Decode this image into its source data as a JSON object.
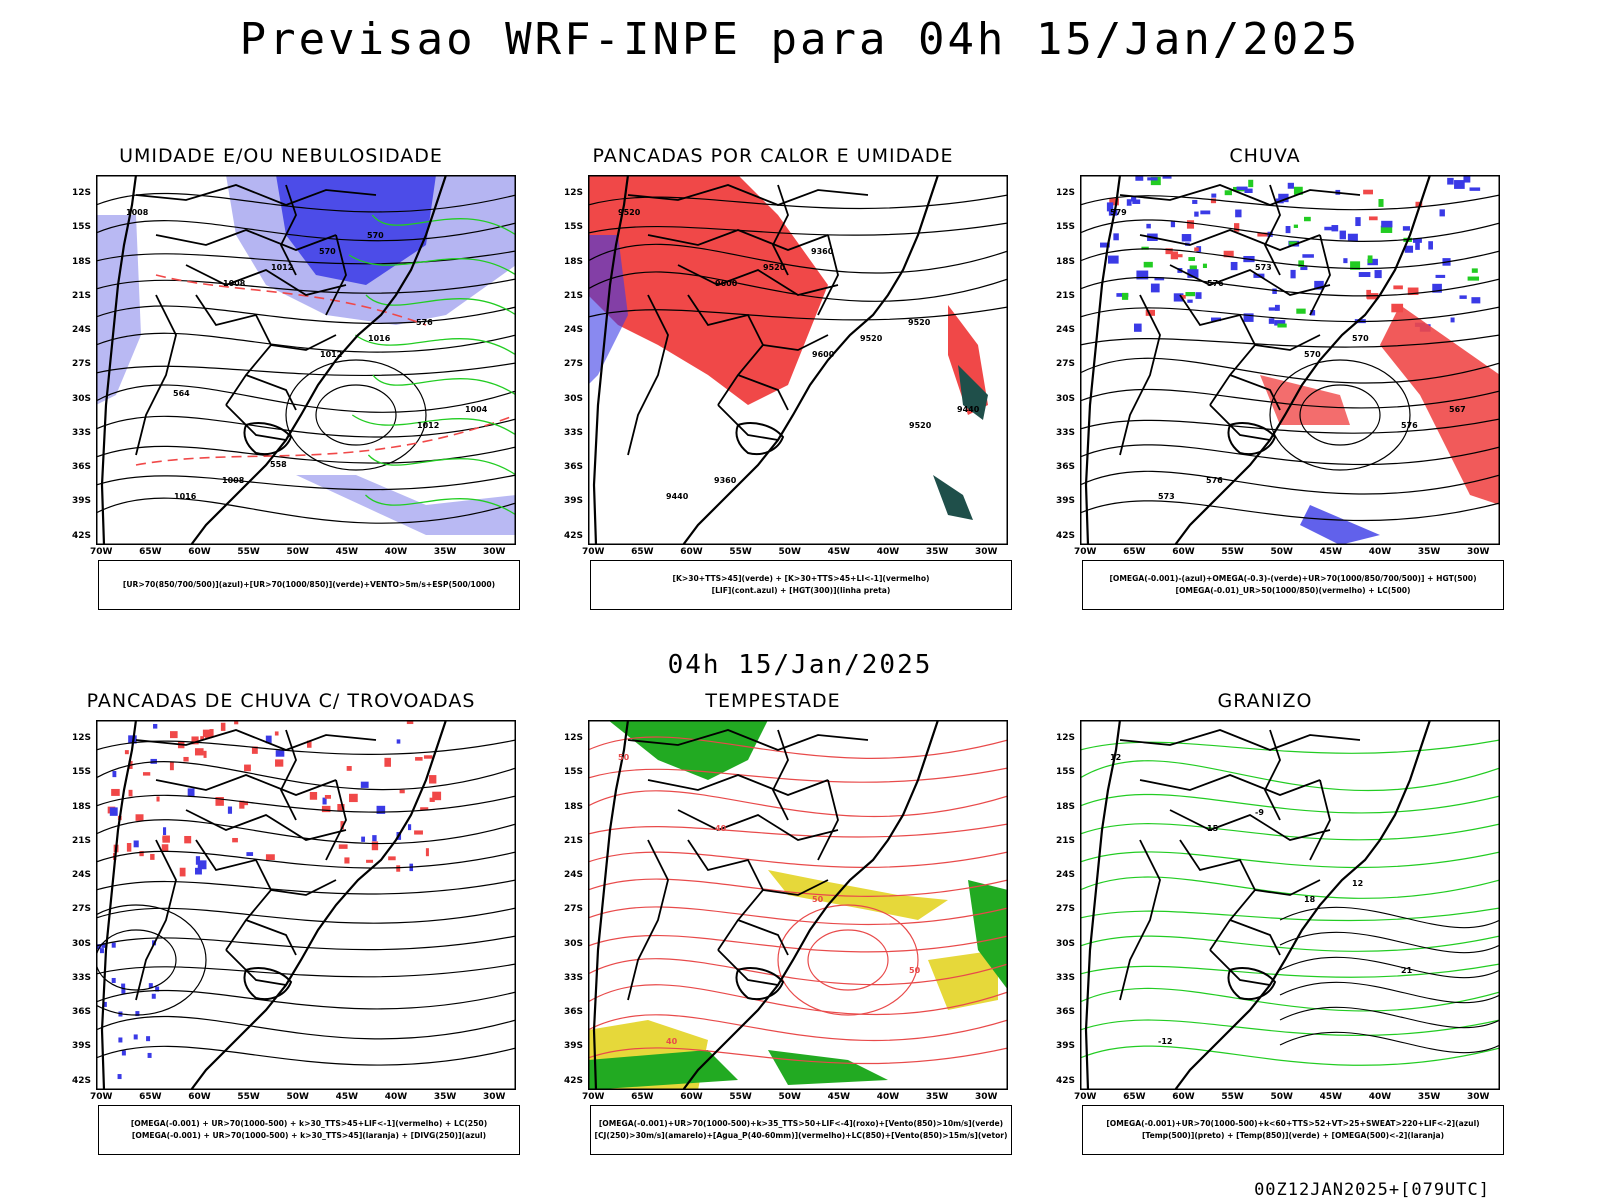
{
  "header": {
    "title": "Previsao WRF-INPE  para 04h 15/Jan/2025"
  },
  "mid_label": "04h 15/Jan/2025",
  "footer": "00Z12JAN2025+[079UTC]",
  "axes": {
    "lat_labels": [
      "12S",
      "15S",
      "18S",
      "21S",
      "24S",
      "27S",
      "30S",
      "33S",
      "36S",
      "39S",
      "42S"
    ],
    "lon_labels": [
      "70W",
      "65W",
      "60W",
      "55W",
      "50W",
      "45W",
      "40W",
      "35W",
      "30W"
    ]
  },
  "colors": {
    "blue": "#3a3ae6",
    "lightblue": "#a8a8f0",
    "green": "#22cc22",
    "red": "#f04848",
    "darkgreen": "#1f4f4a",
    "yellow": "#e6d83a",
    "orange": "#f08a2a",
    "purple": "#a020c0"
  },
  "panels": [
    {
      "title": "UMIDADE E/OU NEBULOSIDADE",
      "legend": [
        "[UR>70(850/700/500)](azul)+[UR>70(1000/850)](verde)+VENTO>5m/s+ESP(500/1000)"
      ],
      "contour_labels": [
        "1008",
        "1008",
        "1012",
        "1012",
        "1016",
        "1012",
        "1016",
        "1004",
        "1008",
        "570",
        "576",
        "564",
        "558",
        "570"
      ]
    },
    {
      "title": "PANCADAS POR CALOR E UMIDADE",
      "legend": [
        "[K>30+TTS>45](verde) + [K>30+TTS>45+LI<-1](vermelho)",
        "[LIF](cont.azul) + [HGT(300)](linha preta)"
      ],
      "contour_labels": [
        "9520",
        "9600",
        "9600",
        "9520",
        "9440",
        "9520",
        "9520",
        "9440",
        "9360",
        "9360",
        "9520"
      ]
    },
    {
      "title": "CHUVA",
      "legend": [
        "[OMEGA(-0.001)-(azul)+OMEGA(-0.3)-(verde)+UR>70(1000/850/700/500)] + HGT(500)",
        "[OMEGA(-0.01)_UR>50(1000/850)(vermelho) + LC(500)"
      ],
      "contour_labels": [
        "579",
        "576",
        "570",
        "576",
        "573",
        "573",
        "570",
        "567",
        "576"
      ]
    },
    {
      "title": "PANCADAS DE CHUVA C/ TROVOADAS",
      "legend": [
        "[OMEGA(-0.001) + UR>70(1000-500) + k>30_TTS>45+LIF<-1](vermelho) + LC(250)",
        "[OMEGA(-0.001) + UR>70(1000-500) + k>30_TTS>45](laranja) + [DIVG(250)](azul)"
      ],
      "contour_labels": []
    },
    {
      "title": "TEMPESTADE",
      "legend": [
        "[OMEGA(-0.001)+UR>70(1000-500)+k>35_TTS>50+LIF<-4](roxo)+[Vento(850)>10m/s](verde)",
        "[CJ(250)>30m/s](amarelo)+[Agua_P(40-60mm)](vermelho)+LC(850)+[Vento(850)>15m/s](vetor)"
      ],
      "contour_labels": [
        "50",
        "40",
        "50",
        "50",
        "40"
      ]
    },
    {
      "title": "GRANIZO",
      "legend": [
        "[OMEGA(-0.001)+UR>70(1000-500)+k<60+TTS>52+VT>25+SWEAT>220+LIF<-2](azul)",
        "[Temp(500)](preto) + [Temp(850)](verde) + [OMEGA(500)<-2](laranja)"
      ],
      "contour_labels": [
        "12",
        "15",
        "18",
        "21",
        "-12",
        "-9",
        "12"
      ]
    }
  ]
}
